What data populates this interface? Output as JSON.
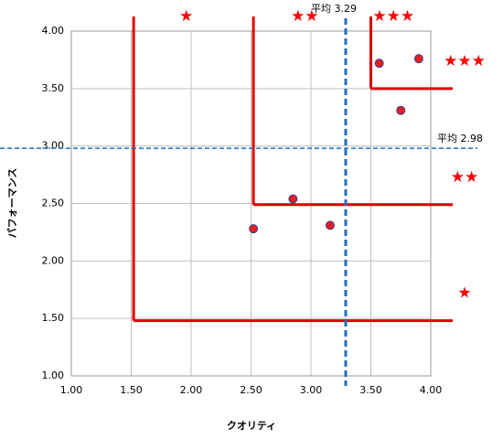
{
  "chart_data": {
    "type": "scatter",
    "x_label": "クオリティ",
    "y_label": "パフォーマンス",
    "x": [
      3.57,
      3.9,
      3.75,
      2.85,
      2.52,
      3.16
    ],
    "values": [
      3.72,
      3.76,
      3.31,
      2.54,
      2.28,
      2.31
    ],
    "color": "#e02020",
    "xlim": [
      1,
      4
    ],
    "ylim": [
      1,
      4
    ],
    "xticks": [
      {
        "value": 1,
        "label": "1.00"
      },
      {
        "value": 1.5,
        "label": "1.50"
      },
      {
        "value": 2,
        "label": "2.00"
      },
      {
        "value": 2.5,
        "label": "2.50"
      },
      {
        "value": 3,
        "label": "3.00"
      },
      {
        "value": 3.5,
        "label": "3.50"
      },
      {
        "value": 4,
        "label": "4.00"
      }
    ],
    "yticks": [
      {
        "value": 1,
        "label": "1.00"
      },
      {
        "value": 1.5,
        "label": "1.50"
      },
      {
        "value": 2,
        "label": "2.00"
      },
      {
        "value": 2.5,
        "label": "2.50"
      },
      {
        "value": 3,
        "label": "3.00"
      },
      {
        "value": 3.5,
        "label": "3.50"
      },
      {
        "value": 4,
        "label": "4.00"
      }
    ],
    "grid": true,
    "mean_x": {
      "value": 3.29,
      "label": "平均 3.29"
    },
    "mean_y": {
      "value": 2.98,
      "label": "平均 2.98"
    },
    "zones": [
      {
        "x": 1.52,
        "y": 1.48,
        "top_label": "★",
        "right_label": "★"
      },
      {
        "x": 2.52,
        "y": 2.49,
        "top_label": "★★",
        "right_label": "★★"
      },
      {
        "x": 3.5,
        "y": 3.5,
        "top_label": "★★★",
        "right_label": "★★★"
      }
    ]
  }
}
